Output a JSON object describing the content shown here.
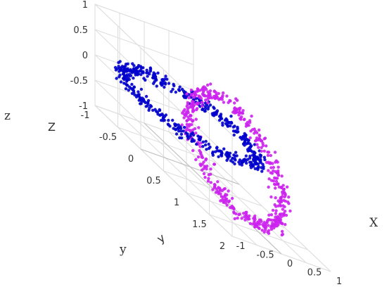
{
  "chart_data": {
    "type": "scatter",
    "dimensions": 3,
    "title": "",
    "axes": {
      "x": {
        "title": "X",
        "range": [
          -1,
          1
        ],
        "ticks": [
          "-1",
          "-0.5",
          "0",
          "0.5",
          "1"
        ]
      },
      "y": {
        "title": "y",
        "inner_title": "y",
        "range": [
          -1,
          2
        ],
        "ticks": [
          "-1",
          "-0.5",
          "0",
          "0.5",
          "1",
          "1.5",
          "2"
        ]
      },
      "z": {
        "title": "z",
        "inner_title": "Z",
        "range": [
          -1,
          1
        ],
        "ticks": [
          "-1",
          "-0.5",
          "0",
          "0.5",
          "1"
        ]
      }
    },
    "grid": true,
    "legend": "none",
    "series": [
      {
        "shape": "ring in x-y plane",
        "center": [
          0,
          0,
          0
        ],
        "radius": 1,
        "noise": 0.06,
        "point_count": 500,
        "color": "#0000cc"
      },
      {
        "shape": "ring in y-z plane",
        "center": [
          0,
          1,
          0
        ],
        "radius": 1,
        "noise": 0.06,
        "point_count": 500,
        "color": "#cc22ee"
      }
    ]
  }
}
